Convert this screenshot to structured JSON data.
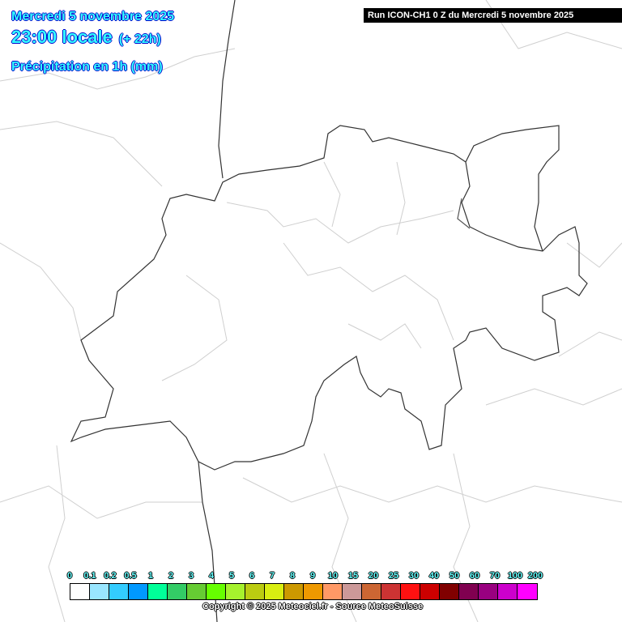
{
  "header": {
    "date": "Mercredi 5 novembre 2025",
    "time": "23:00 locale",
    "lead": "(+ 22h)",
    "parameter": "Précipitation en 1h (mm)",
    "run": "Run ICON-CH1 0 Z du Mercredi 5 novembre 2025"
  },
  "legend": {
    "labels": [
      "0",
      "0.1",
      "0.2",
      "0.5",
      "1",
      "2",
      "3",
      "4",
      "5",
      "6",
      "7",
      "8",
      "9",
      "10",
      "15",
      "20",
      "25",
      "30",
      "40",
      "50",
      "60",
      "70",
      "100",
      "200"
    ],
    "colors": [
      "#ffffff",
      "#99e6ff",
      "#33ccff",
      "#0099ff",
      "#00ff99",
      "#33cc66",
      "#66cc33",
      "#66ff00",
      "#a6f22d",
      "#bbcc11",
      "#d9ee11",
      "#cc9900",
      "#ee9900",
      "#ff9966",
      "#cc9999",
      "#cc6633",
      "#cc3333",
      "#ff1111",
      "#cc0000",
      "#800000",
      "#800050",
      "#990080",
      "#cc00cc",
      "#ff00ff"
    ]
  },
  "footer": {
    "copyright": "Copyright © 2025 Meteociel.fr - Source MeteoSuisse"
  }
}
